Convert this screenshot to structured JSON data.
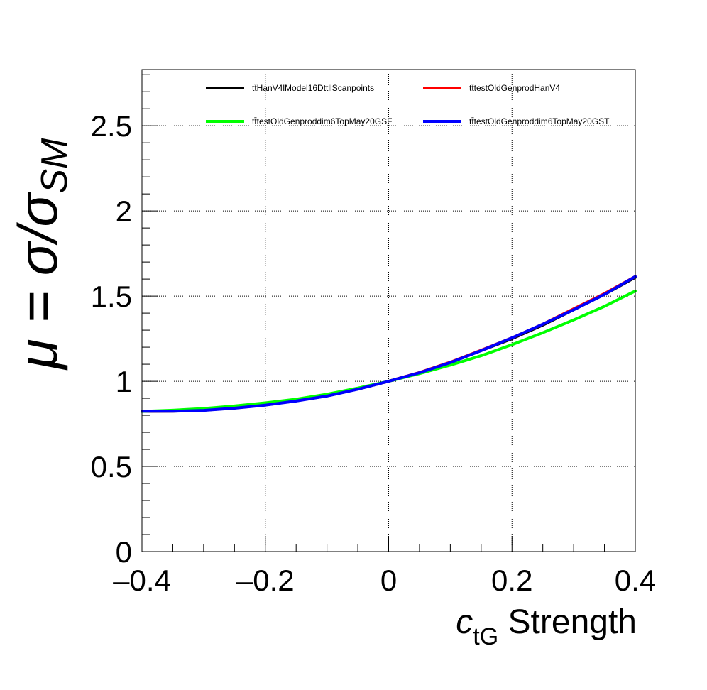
{
  "chart_data": {
    "type": "line",
    "xlabel": {
      "symbol": "c",
      "subscript": "tG",
      "text": " Strength"
    },
    "ylabel": {
      "prefix": "μ = σ/σ",
      "subscript": "SM"
    },
    "xlim": [
      -0.4,
      0.4
    ],
    "ylim": [
      0,
      2.83
    ],
    "x_ticks": [
      -0.4,
      -0.2,
      0,
      0.2,
      0.4
    ],
    "x_tick_labels": [
      "–0.4",
      "–0.2",
      "0",
      "0.2",
      "0.4"
    ],
    "y_ticks": [
      0,
      0.5,
      1,
      1.5,
      2,
      2.5
    ],
    "y_tick_labels": [
      "0",
      "0.5",
      "1",
      "1.5",
      "2",
      "2.5"
    ],
    "grid": true,
    "legend_position": "top",
    "series": [
      {
        "name": "tt̄HanV4lModel16DttllScanpoints",
        "color": "#000000",
        "x": [
          -0.4,
          -0.35,
          -0.3,
          -0.25,
          -0.2,
          -0.15,
          -0.1,
          -0.05,
          0,
          0.05,
          0.1,
          0.15,
          0.2,
          0.25,
          0.3,
          0.35,
          0.4
        ],
        "y": [
          0.823,
          0.824,
          0.83,
          0.843,
          0.861,
          0.885,
          0.914,
          0.954,
          1.0,
          1.05,
          1.11,
          1.18,
          1.25,
          1.33,
          1.42,
          1.51,
          1.61
        ]
      },
      {
        "name": "tt̄testOldGenprodHanV4",
        "color": "#ff0000",
        "x": [
          -0.4,
          -0.35,
          -0.3,
          -0.25,
          -0.2,
          -0.15,
          -0.1,
          -0.05,
          0,
          0.05,
          0.1,
          0.15,
          0.2,
          0.25,
          0.3,
          0.35,
          0.4
        ],
        "y": [
          0.825,
          0.825,
          0.831,
          0.844,
          0.862,
          0.886,
          0.915,
          0.955,
          1.0,
          1.051,
          1.112,
          1.182,
          1.255,
          1.335,
          1.425,
          1.515,
          1.615
        ]
      },
      {
        "name": "tt̄testOldGenproddim6TopMay20GSF",
        "color": "#00ff00",
        "x": [
          -0.4,
          -0.35,
          -0.3,
          -0.25,
          -0.2,
          -0.15,
          -0.1,
          -0.05,
          0,
          0.05,
          0.1,
          0.15,
          0.2,
          0.25,
          0.3,
          0.35,
          0.4
        ],
        "y": [
          0.823,
          0.83,
          0.84,
          0.855,
          0.873,
          0.895,
          0.924,
          0.96,
          1.0,
          1.045,
          1.095,
          1.15,
          1.215,
          1.285,
          1.36,
          1.44,
          1.53
        ]
      },
      {
        "name": "tt̄testOldGenproddim6TopMay20GST",
        "color": "#0000ff",
        "x": [
          -0.4,
          -0.35,
          -0.3,
          -0.25,
          -0.2,
          -0.15,
          -0.1,
          -0.05,
          0,
          0.05,
          0.1,
          0.15,
          0.2,
          0.25,
          0.3,
          0.35,
          0.4
        ],
        "y": [
          0.824,
          0.824,
          0.829,
          0.842,
          0.86,
          0.884,
          0.913,
          0.953,
          1.0,
          1.05,
          1.11,
          1.18,
          1.255,
          1.335,
          1.42,
          1.51,
          1.615
        ]
      }
    ]
  }
}
